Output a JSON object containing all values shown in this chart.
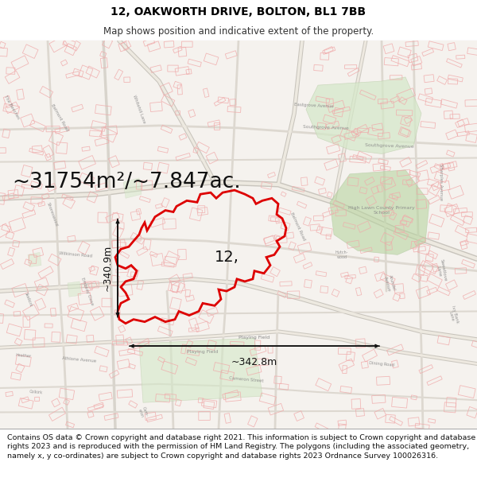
{
  "title_line1": "12, OAKWORTH DRIVE, BOLTON, BL1 7BB",
  "title_line2": "Map shows position and indicative extent of the property.",
  "area_text": "~31754m²/~7.847ac.",
  "label_number": "12,",
  "dim_vertical": "~340.9m",
  "dim_horizontal": "~342.8m",
  "footer_text": "Contains OS data © Crown copyright and database right 2021. This information is subject to Crown copyright and database rights 2023 and is reproduced with the permission of HM Land Registry. The polygons (including the associated geometry, namely x, y co-ordinates) are subject to Crown copyright and database rights 2023 Ordnance Survey 100026316.",
  "map_bg": "#f5f2ee",
  "title_bg": "#ffffff",
  "footer_bg": "#ffffff",
  "red_color": "#dd0000",
  "faint_red": "#f0aaaa",
  "road_color": "#cccccc",
  "green_color": "#d4e8c8",
  "dark_green": "#b8d4a0",
  "arrow_color": "#111111",
  "text_color": "#111111",
  "label_color": "#aaaaaa",
  "title_fontsize": 10,
  "subtitle_fontsize": 8.5,
  "area_fontsize": 19,
  "label_fontsize": 14,
  "dim_fontsize": 9,
  "footer_fontsize": 6.8,
  "street_label_fontsize": 4.5
}
